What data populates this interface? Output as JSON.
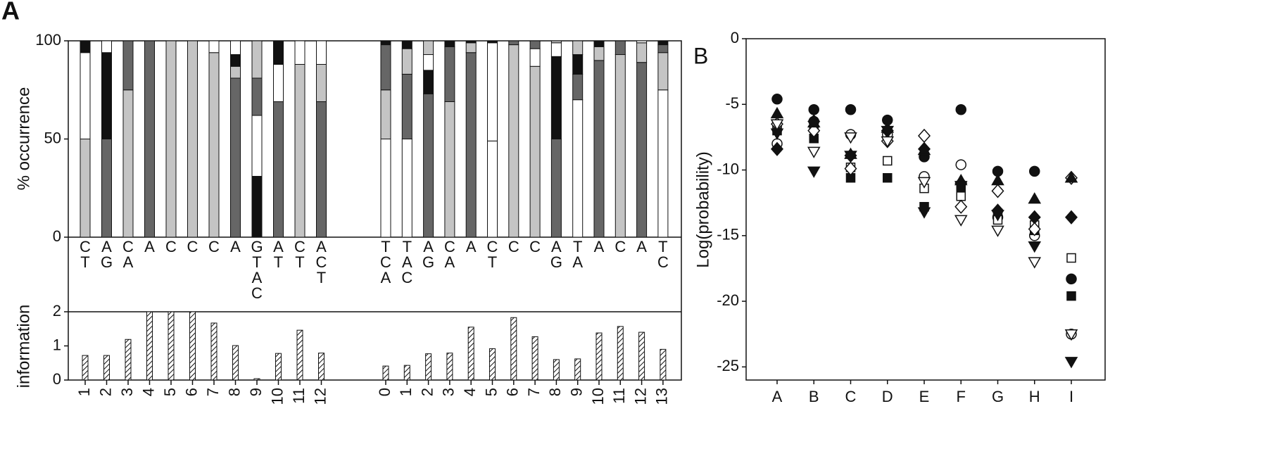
{
  "chart_data": [
    {
      "type": "stacked-bar",
      "panel": "A",
      "ylabel": "% occurrence",
      "ylim": [
        0,
        100
      ],
      "yticks": [
        0,
        50,
        100
      ],
      "groups": [
        {
          "letters": [
            [
              "C",
              "T"
            ],
            [
              "A",
              "G"
            ],
            [
              "C",
              "A"
            ],
            [
              "A"
            ],
            [
              "C"
            ],
            [
              "C"
            ],
            [
              "C"
            ],
            [
              "A"
            ],
            [
              "G",
              "T",
              "A",
              "C"
            ],
            [
              "A",
              "T"
            ],
            [
              "C",
              "T"
            ],
            [
              "A",
              "C",
              "T"
            ]
          ],
          "segments": [
            [
              {
                "value": 50,
                "color": "#c4c4c4"
              },
              {
                "value": 44,
                "color": "#ffffff"
              },
              {
                "value": 6,
                "color": "#111111"
              }
            ],
            [
              {
                "value": 50,
                "color": "#666666"
              },
              {
                "value": 44,
                "color": "#111111"
              },
              {
                "value": 6,
                "color": "#ffffff"
              }
            ],
            [
              {
                "value": 75,
                "color": "#c4c4c4"
              },
              {
                "value": 25,
                "color": "#666666"
              }
            ],
            [
              {
                "value": 100,
                "color": "#666666"
              }
            ],
            [
              {
                "value": 100,
                "color": "#c4c4c4"
              }
            ],
            [
              {
                "value": 100,
                "color": "#c4c4c4"
              }
            ],
            [
              {
                "value": 94,
                "color": "#c4c4c4"
              },
              {
                "value": 6,
                "color": "#ffffff"
              }
            ],
            [
              {
                "value": 81,
                "color": "#666666"
              },
              {
                "value": 6,
                "color": "#c4c4c4"
              },
              {
                "value": 6,
                "color": "#111111"
              },
              {
                "value": 7,
                "color": "#ffffff"
              }
            ],
            [
              {
                "value": 31,
                "color": "#111111"
              },
              {
                "value": 31,
                "color": "#ffffff"
              },
              {
                "value": 19,
                "color": "#666666"
              },
              {
                "value": 19,
                "color": "#c4c4c4"
              }
            ],
            [
              {
                "value": 69,
                "color": "#666666"
              },
              {
                "value": 19,
                "color": "#ffffff"
              },
              {
                "value": 12,
                "color": "#111111"
              }
            ],
            [
              {
                "value": 88,
                "color": "#c4c4c4"
              },
              {
                "value": 12,
                "color": "#ffffff"
              }
            ],
            [
              {
                "value": 69,
                "color": "#666666"
              },
              {
                "value": 19,
                "color": "#c4c4c4"
              },
              {
                "value": 12,
                "color": "#ffffff"
              }
            ]
          ]
        },
        {
          "letters": [
            [
              "T",
              "C",
              "A"
            ],
            [
              "T",
              "A",
              "C"
            ],
            [
              "A",
              "G"
            ],
            [
              "C",
              "A"
            ],
            [
              "A"
            ],
            [
              "C",
              "T"
            ],
            [
              "C"
            ],
            [
              "C"
            ],
            [
              "A",
              "G"
            ],
            [
              "T",
              "A"
            ],
            [
              "A"
            ],
            [
              "C"
            ],
            [
              "A"
            ],
            [
              "T",
              "C"
            ]
          ],
          "segments": [
            [
              {
                "value": 50,
                "color": "#ffffff"
              },
              {
                "value": 25,
                "color": "#c4c4c4"
              },
              {
                "value": 23,
                "color": "#666666"
              },
              {
                "value": 2,
                "color": "#111111"
              }
            ],
            [
              {
                "value": 50,
                "color": "#ffffff"
              },
              {
                "value": 33,
                "color": "#666666"
              },
              {
                "value": 13,
                "color": "#c4c4c4"
              },
              {
                "value": 4,
                "color": "#111111"
              }
            ],
            [
              {
                "value": 73,
                "color": "#666666"
              },
              {
                "value": 12,
                "color": "#111111"
              },
              {
                "value": 8,
                "color": "#ffffff"
              },
              {
                "value": 7,
                "color": "#c4c4c4"
              }
            ],
            [
              {
                "value": 69,
                "color": "#c4c4c4"
              },
              {
                "value": 28,
                "color": "#666666"
              },
              {
                "value": 3,
                "color": "#111111"
              }
            ],
            [
              {
                "value": 94,
                "color": "#666666"
              },
              {
                "value": 5,
                "color": "#c4c4c4"
              },
              {
                "value": 1,
                "color": "#111111"
              }
            ],
            [
              {
                "value": 49,
                "color": "#ffffff"
              },
              {
                "value": 50,
                "color": "#ffffff"
              },
              {
                "value": 1,
                "color": "#111111"
              }
            ],
            [
              {
                "value": 98,
                "color": "#c4c4c4"
              },
              {
                "value": 2,
                "color": "#666666"
              }
            ],
            [
              {
                "value": 87,
                "color": "#c4c4c4"
              },
              {
                "value": 9,
                "color": "#ffffff"
              },
              {
                "value": 4,
                "color": "#666666"
              }
            ],
            [
              {
                "value": 50,
                "color": "#666666"
              },
              {
                "value": 42,
                "color": "#111111"
              },
              {
                "value": 7,
                "color": "#ffffff"
              },
              {
                "value": 1,
                "color": "#c4c4c4"
              }
            ],
            [
              {
                "value": 70,
                "color": "#ffffff"
              },
              {
                "value": 13,
                "color": "#666666"
              },
              {
                "value": 10,
                "color": "#111111"
              },
              {
                "value": 7,
                "color": "#c4c4c4"
              }
            ],
            [
              {
                "value": 90,
                "color": "#666666"
              },
              {
                "value": 7,
                "color": "#c4c4c4"
              },
              {
                "value": 3,
                "color": "#111111"
              }
            ],
            [
              {
                "value": 93,
                "color": "#c4c4c4"
              },
              {
                "value": 7,
                "color": "#666666"
              }
            ],
            [
              {
                "value": 89,
                "color": "#666666"
              },
              {
                "value": 10,
                "color": "#c4c4c4"
              },
              {
                "value": 1,
                "color": "#ffffff"
              }
            ],
            [
              {
                "value": 75,
                "color": "#ffffff"
              },
              {
                "value": 19,
                "color": "#c4c4c4"
              },
              {
                "value": 4,
                "color": "#666666"
              },
              {
                "value": 2,
                "color": "#111111"
              }
            ]
          ]
        }
      ]
    },
    {
      "type": "bar",
      "ylabel": "information",
      "ylim": [
        0,
        2
      ],
      "yticks": [
        0,
        1,
        2
      ],
      "groups": [
        {
          "categories": [
            "1",
            "2",
            "3",
            "4",
            "5",
            "6",
            "7",
            "8",
            "9",
            "10",
            "11",
            "12"
          ],
          "values": [
            0.72,
            0.72,
            1.19,
            2,
            2,
            2,
            1.67,
            1.01,
            0.04,
            0.78,
            1.46,
            0.79
          ]
        },
        {
          "categories": [
            "0",
            "1",
            "2",
            "3",
            "4",
            "5",
            "6",
            "7",
            "8",
            "9",
            "10",
            "11",
            "12",
            "13"
          ],
          "values": [
            0.41,
            0.43,
            0.77,
            0.79,
            1.55,
            0.92,
            1.83,
            1.27,
            0.6,
            0.62,
            1.38,
            1.57,
            1.4,
            0.9
          ]
        }
      ]
    },
    {
      "type": "scatter",
      "panel": "B",
      "ylabel": "Log(probability)",
      "ylim": [
        -26,
        0
      ],
      "yticks": [
        0,
        -5,
        -10,
        -15,
        -20,
        -25
      ],
      "categories": [
        "A",
        "B",
        "C",
        "D",
        "E",
        "F",
        "G",
        "H",
        "I"
      ],
      "series": [
        {
          "marker": "circle",
          "filled": true,
          "values": [
            -4.6,
            -5.4,
            -5.4,
            -6.2,
            -9,
            -5.4,
            -10.1,
            -10.1,
            -18.3
          ]
        },
        {
          "marker": "circle",
          "filled": false,
          "values": [
            -8,
            -6.3,
            -7.3,
            -7.3,
            -10.5,
            -9.6,
            -13.6,
            -15,
            -22.5
          ]
        },
        {
          "marker": "square",
          "filled": true,
          "values": [
            -7,
            -7.6,
            -10.6,
            -10.6,
            -12.8,
            -11.4,
            -13.3,
            -14.6,
            -19.6
          ]
        },
        {
          "marker": "square",
          "filled": false,
          "values": [
            -6.5,
            -6.8,
            -9.8,
            -9.3,
            -11.4,
            -12,
            -13.8,
            -14.2,
            -16.7
          ]
        },
        {
          "marker": "diamond",
          "filled": true,
          "values": [
            -8.4,
            -6.3,
            -8.9,
            -7,
            -8.4,
            -11,
            -13.1,
            -13.6,
            -13.6
          ]
        },
        {
          "marker": "diamond",
          "filled": false,
          "values": [
            -6.5,
            -7,
            -9.9,
            -7.8,
            -7.4,
            -12.8,
            -11.6,
            -14.5,
            -10.6
          ]
        },
        {
          "marker": "triangle-up",
          "filled": true,
          "values": [
            -5.7,
            -6.4,
            -8.8,
            -6.8,
            -8.5,
            -10.8,
            -10.8,
            -12.2,
            -10.6
          ]
        },
        {
          "marker": "triangle-down",
          "filled": false,
          "values": [
            -6.5,
            -8.6,
            -7.5,
            -7.8,
            -10.9,
            -13.8,
            -14.6,
            -17,
            -22.5
          ]
        },
        {
          "marker": "triangle-down",
          "filled": true,
          "values": [
            -7.2,
            -10.1,
            -8.9,
            -7,
            -13.2,
            -11.2,
            -13.4,
            -15.8,
            -24.6
          ]
        }
      ]
    }
  ]
}
